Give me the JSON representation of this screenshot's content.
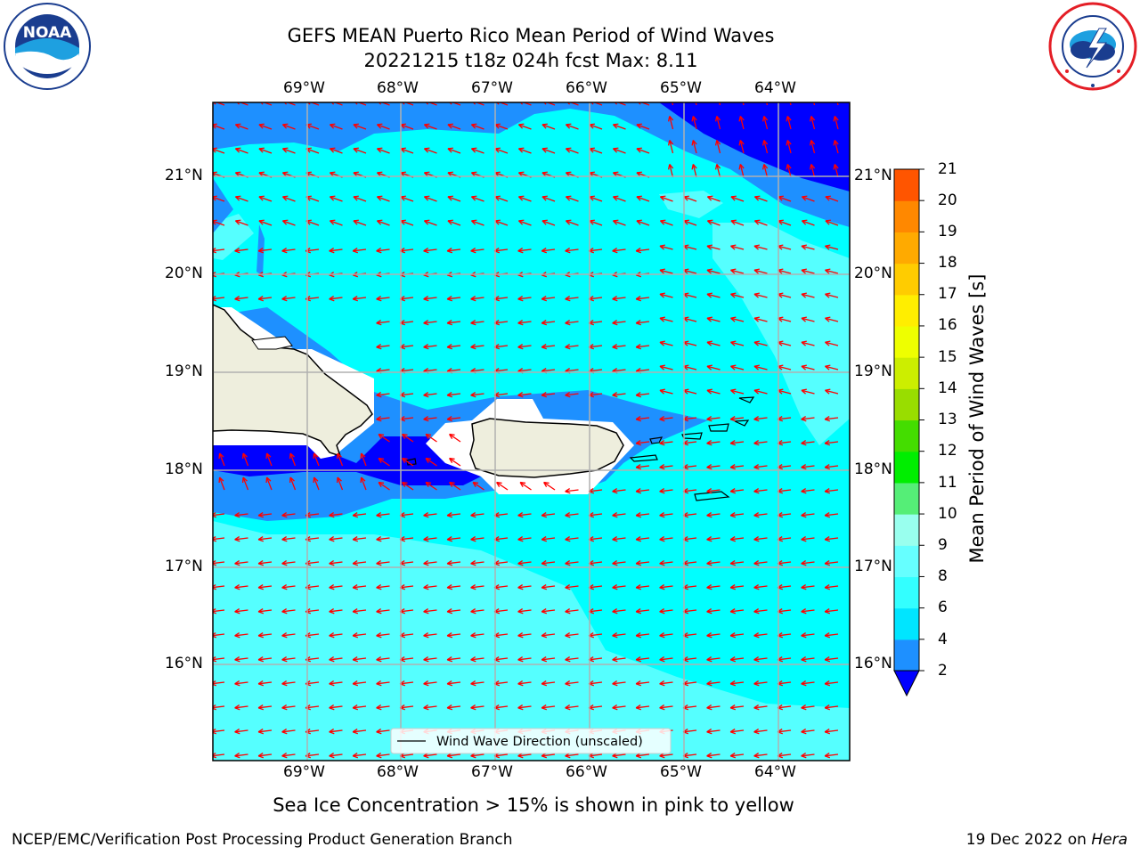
{
  "header": {
    "title_line1": "GEFS MEAN Puerto Rico Mean Period of Wind Waves",
    "title_line2": "20221215 t18z 024h fcst   Max: 8.11"
  },
  "logos": {
    "left": {
      "name": "NOAA",
      "text": "NOAA",
      "icon": "noaa-logo-icon"
    },
    "right": {
      "name": "National Weather Service",
      "icon": "nws-logo-icon"
    }
  },
  "map": {
    "lon_labels": [
      "69°W",
      "68°W",
      "67°W",
      "66°W",
      "65°W",
      "64°W"
    ],
    "lat_labels": [
      "21°N",
      "20°N",
      "19°N",
      "18°N",
      "17°N",
      "16°N"
    ],
    "legend_label": "Wind Wave Direction (unscaled)",
    "colors": {
      "ocean_main": "#00ffff",
      "ocean_light": "#55ffff",
      "ocean_mid": "#1e90ff",
      "ocean_dark": "#0000ff",
      "land": "#eeeedd",
      "arrow": "#ff0000",
      "grid": "#b0b0b0"
    }
  },
  "colorbar": {
    "label": "Mean Period of Wind Waves [s]",
    "ticks": [
      "2",
      "4",
      "6",
      "8",
      "9",
      "10",
      "11",
      "12",
      "13",
      "14",
      "15",
      "16",
      "17",
      "18",
      "19",
      "20",
      "21"
    ],
    "colors": [
      "#1e90ff",
      "#00e5ff",
      "#33ffff",
      "#66ffff",
      "#99ffee",
      "#55ee77",
      "#00ee00",
      "#44dd00",
      "#99dd00",
      "#ccee00",
      "#eeff00",
      "#ffee00",
      "#ffcc00",
      "#ffaa00",
      "#ff8800",
      "#ff5500",
      "#ff2200",
      "#ff0000"
    ],
    "extend_color": "#0000ff"
  },
  "footer": {
    "sea_ice_note": "Sea Ice Concentration > 15% is shown in pink to yellow",
    "branch": "NCEP/EMC/Verification Post Processing Product Generation Branch",
    "date": "19 Dec 2022 on",
    "host": "Hera"
  }
}
